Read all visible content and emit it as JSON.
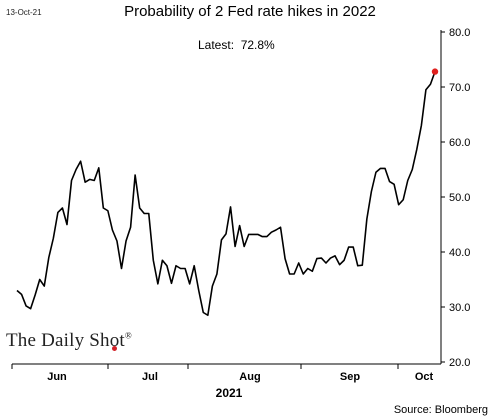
{
  "header": {
    "date": "13-Oct-21",
    "title": "Probability of 2 Fed rate hikes in 2022",
    "latest": "Latest:  72.8%"
  },
  "branding": {
    "logo_text": "The Daily Shot",
    "logo_mark": "®",
    "accent": "#d21f26"
  },
  "footer": {
    "source": "Source: Bloomberg"
  },
  "chart_data": {
    "type": "line",
    "title": "Probability of 2 Fed rate hikes in 2022",
    "xlabel": "2021",
    "ylabel": "",
    "ylim": [
      20,
      80
    ],
    "yticks": [
      "80.0",
      "70.0",
      "60.0",
      "50.0",
      "40.0",
      "30.0",
      "20.0"
    ],
    "xticks": [
      "Jun",
      "Jul",
      "Aug",
      "Sep",
      "Oct"
    ],
    "grid": false,
    "line_color": "#000000",
    "last_point_color": "#e0211f",
    "series": [
      {
        "values": [
          33.0,
          32.3,
          30.2,
          29.7,
          32.2,
          35.0,
          33.8,
          39.0,
          42.5,
          47.2,
          48.0,
          45.0,
          53.0,
          55.0,
          56.5,
          52.7,
          53.2,
          53.0,
          55.3,
          48.0,
          47.5,
          44.0,
          42.0,
          37.0,
          42.0,
          44.5,
          54.0,
          48.0,
          47.0,
          47.0,
          38.5,
          34.2,
          38.5,
          37.5,
          34.3,
          37.5,
          37.0,
          37.0,
          34.2,
          37.5,
          33.0,
          29.0,
          28.5,
          33.8,
          36.0,
          42.2,
          43.3,
          48.2,
          41.0,
          44.8,
          41.0,
          43.2,
          43.2,
          43.2,
          42.8,
          42.8,
          43.6,
          44.0,
          44.5,
          38.8,
          36.0,
          36.0,
          38.0,
          36.0,
          37.0,
          36.5,
          38.8,
          38.9,
          38.0,
          38.9,
          39.3,
          37.7,
          38.5,
          40.9,
          40.9,
          37.5,
          37.6,
          46.0,
          51.0,
          54.5,
          55.2,
          55.2,
          52.8,
          52.3,
          48.6,
          49.5,
          53.0,
          55.0,
          58.7,
          63.0,
          69.5,
          70.5,
          72.8
        ]
      }
    ]
  }
}
